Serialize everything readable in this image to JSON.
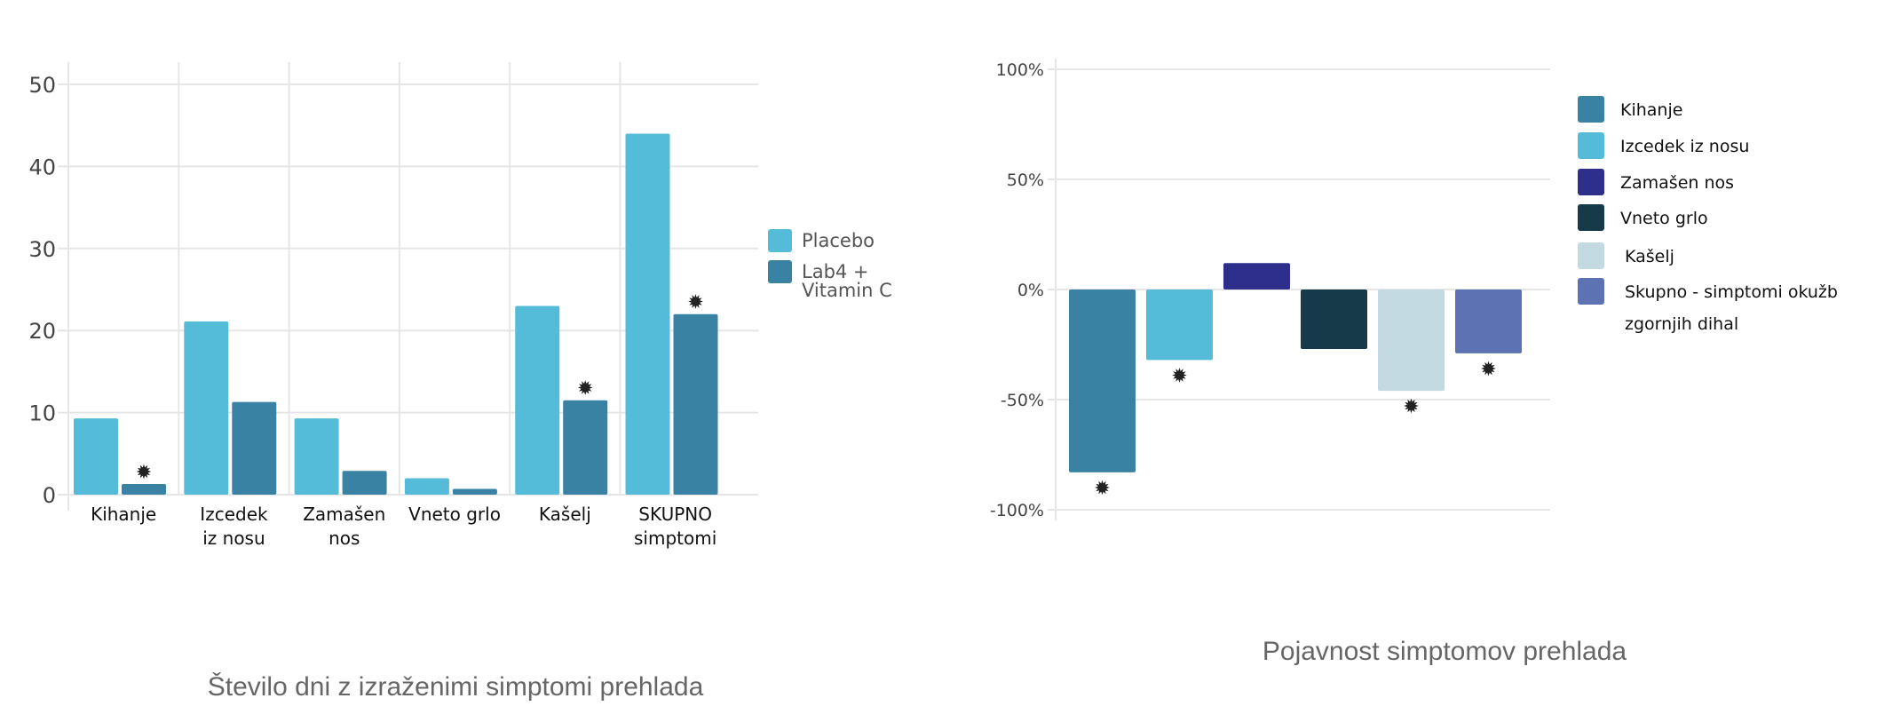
{
  "chart_data": [
    {
      "type": "bar",
      "title": "Število dni z izraženimi simptomi prehlada",
      "xlabel": "",
      "ylabel": "",
      "ylim": [
        0,
        50
      ],
      "yticks": [
        "0",
        "10",
        "20",
        "30",
        "40",
        "50"
      ],
      "ytick_values": [
        0,
        10,
        20,
        30,
        40,
        50
      ],
      "grid": true,
      "legend_position": "right",
      "categories": [
        [
          "Kihanje"
        ],
        [
          "Izcedek",
          "iz nosu"
        ],
        [
          "Zamašen",
          "nos"
        ],
        [
          "Vneto grlo"
        ],
        [
          "Kašelj"
        ],
        [
          "SKUPNO",
          "simptomi"
        ]
      ],
      "series": [
        {
          "name": "Placebo",
          "legend_lines": [
            "Placebo"
          ],
          "color": "#54bcd8",
          "values": [
            9.3,
            21.1,
            9.3,
            2.0,
            23.0,
            44.0
          ],
          "significant": [
            false,
            false,
            false,
            false,
            false,
            false
          ]
        },
        {
          "name": "Lab4 + Vitamin C",
          "legend_lines": [
            "Lab4 +",
            "Vitamin C"
          ],
          "color": "#3a82a4",
          "values": [
            1.3,
            11.3,
            2.9,
            0.7,
            11.5,
            22.0
          ],
          "significant": [
            true,
            false,
            false,
            false,
            true,
            true
          ]
        }
      ],
      "significance_marker": "✹"
    },
    {
      "type": "bar",
      "title": "Pojavnost simptomov prehlada",
      "xlabel": "",
      "ylabel": "",
      "ylim": [
        -100,
        100
      ],
      "yticks": [
        "100%",
        "50%",
        "0%",
        "-50%",
        "-100%"
      ],
      "ytick_values": [
        100,
        50,
        0,
        -50,
        -100
      ],
      "grid": true,
      "legend_position": "right",
      "categories": [
        "Kihanje",
        "Izcedek iz nosu",
        "Zamašen nos",
        "Vneto grlo",
        "Kašelj",
        "Skupno - simptomi okužb zgornjih dihal"
      ],
      "legend_lines": [
        [
          "Kihanje"
        ],
        [
          "Izcedek iz nosu"
        ],
        [
          "Zamašen nos"
        ],
        [
          "Vneto grlo"
        ],
        [
          "Kašelj"
        ],
        [
          "Skupno - simptomi okužb",
          "zgornjih dihal"
        ]
      ],
      "colors": [
        "#3a82a4",
        "#54bcd8",
        "#2e2f8d",
        "#173a4a",
        "#c4dae3",
        "#5d72b2"
      ],
      "values": [
        -83,
        -32,
        12,
        -27,
        -46,
        -29
      ],
      "significant": [
        true,
        true,
        false,
        false,
        true,
        true
      ],
      "significance_marker": "✹"
    }
  ]
}
